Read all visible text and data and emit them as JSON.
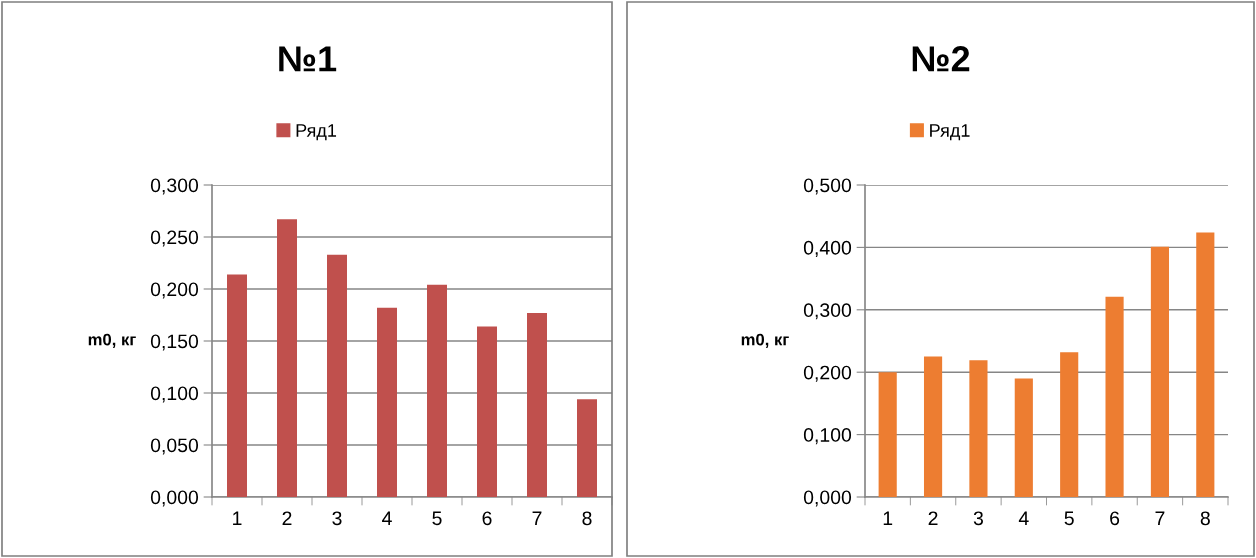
{
  "chart_data": [
    {
      "type": "bar",
      "title": "№1",
      "ylabel": "m0, кг",
      "categories": [
        "1",
        "2",
        "3",
        "4",
        "5",
        "6",
        "7",
        "8"
      ],
      "series": [
        {
          "name": "Ряд1",
          "color": "#c0504d",
          "values": [
            0.214,
            0.267,
            0.233,
            0.182,
            0.204,
            0.164,
            0.177,
            0.094
          ]
        }
      ],
      "ylim": [
        0,
        0.3
      ],
      "yticks": [
        {
          "value": 0,
          "label": "0,000"
        },
        {
          "value": 0.05,
          "label": "0,050"
        },
        {
          "value": 0.1,
          "label": "0,100"
        },
        {
          "value": 0.15,
          "label": "0,150"
        },
        {
          "value": 0.2,
          "label": "0,200"
        },
        {
          "value": 0.25,
          "label": "0,250"
        },
        {
          "value": 0.3,
          "label": "0,300"
        }
      ],
      "grid": "y",
      "legend": "top"
    },
    {
      "type": "bar",
      "title": "№2",
      "ylabel": "m0, кг",
      "categories": [
        "1",
        "2",
        "3",
        "4",
        "5",
        "6",
        "7",
        "8"
      ],
      "series": [
        {
          "name": "Ряд1",
          "color": "#ed7d31",
          "values": [
            0.2,
            0.225,
            0.219,
            0.19,
            0.232,
            0.321,
            0.401,
            0.424
          ]
        }
      ],
      "ylim": [
        0,
        0.5
      ],
      "yticks": [
        {
          "value": 0,
          "label": "0,000"
        },
        {
          "value": 0.1,
          "label": "0,100"
        },
        {
          "value": 0.2,
          "label": "0,200"
        },
        {
          "value": 0.3,
          "label": "0,300"
        },
        {
          "value": 0.4,
          "label": "0,400"
        },
        {
          "value": 0.5,
          "label": "0,500"
        }
      ],
      "grid": "y",
      "legend": "top"
    }
  ]
}
